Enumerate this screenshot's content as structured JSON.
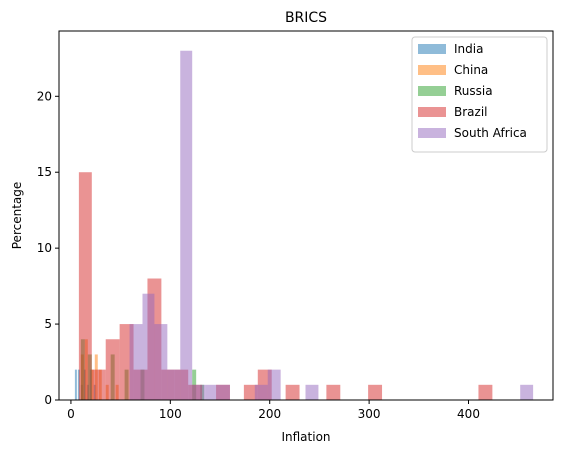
{
  "chart_data": {
    "type": "bar",
    "title": "BRICS",
    "xlabel": "Inflation",
    "ylabel": "Percentage",
    "xlim": [
      -12,
      485
    ],
    "ylim": [
      0,
      24.3
    ],
    "xticks": [
      0,
      100,
      200,
      300,
      400
    ],
    "yticks": [
      0,
      5,
      10,
      15,
      20
    ],
    "grid": false,
    "legend_position": "top-right",
    "series": [
      {
        "name": "India",
        "color": "#1f77b4",
        "bins": [
          {
            "x0": 4,
            "x1": 6,
            "value": 2
          },
          {
            "x0": 7,
            "x1": 9,
            "value": 2
          },
          {
            "x0": 10,
            "x1": 12,
            "value": 1
          },
          {
            "x0": 13,
            "x1": 15,
            "value": 2
          },
          {
            "x0": 16,
            "x1": 18,
            "value": 1
          },
          {
            "x0": 19,
            "x1": 21,
            "value": 2
          },
          {
            "x0": 23,
            "x1": 25,
            "value": 1
          }
        ]
      },
      {
        "name": "China",
        "color": "#ff7f0e",
        "bins": [
          {
            "x0": 10,
            "x1": 13,
            "value": 3
          },
          {
            "x0": 14,
            "x1": 17,
            "value": 4
          },
          {
            "x0": 20,
            "x1": 23,
            "value": 2
          },
          {
            "x0": 24,
            "x1": 27,
            "value": 3
          },
          {
            "x0": 28,
            "x1": 31,
            "value": 2
          },
          {
            "x0": 35,
            "x1": 38,
            "value": 1
          },
          {
            "x0": 45,
            "x1": 48,
            "value": 1
          }
        ]
      },
      {
        "name": "Russia",
        "color": "#2ca02c",
        "bins": [
          {
            "x0": 10,
            "x1": 14,
            "value": 4
          },
          {
            "x0": 17,
            "x1": 21,
            "value": 3
          },
          {
            "x0": 40,
            "x1": 44,
            "value": 3
          },
          {
            "x0": 54,
            "x1": 58,
            "value": 2
          },
          {
            "x0": 70,
            "x1": 74,
            "value": 2
          },
          {
            "x0": 122,
            "x1": 126,
            "value": 2
          },
          {
            "x0": 130,
            "x1": 134,
            "value": 1
          }
        ]
      },
      {
        "name": "Brazil",
        "color": "#d62728",
        "bins": [
          {
            "x0": 8,
            "x1": 21,
            "value": 15
          },
          {
            "x0": 21,
            "x1": 35,
            "value": 2
          },
          {
            "x0": 35,
            "x1": 49,
            "value": 4
          },
          {
            "x0": 49,
            "x1": 63,
            "value": 5
          },
          {
            "x0": 63,
            "x1": 77,
            "value": 2
          },
          {
            "x0": 77,
            "x1": 91,
            "value": 8
          },
          {
            "x0": 91,
            "x1": 104,
            "value": 2
          },
          {
            "x0": 104,
            "x1": 118,
            "value": 2
          },
          {
            "x0": 118,
            "x1": 132,
            "value": 1
          },
          {
            "x0": 146,
            "x1": 160,
            "value": 1
          },
          {
            "x0": 174,
            "x1": 188,
            "value": 1
          },
          {
            "x0": 188,
            "x1": 202,
            "value": 2
          },
          {
            "x0": 216,
            "x1": 230,
            "value": 1
          },
          {
            "x0": 257,
            "x1": 271,
            "value": 1
          },
          {
            "x0": 299,
            "x1": 313,
            "value": 1
          },
          {
            "x0": 410,
            "x1": 424,
            "value": 1
          }
        ]
      },
      {
        "name": "South Africa",
        "color": "#9467bd",
        "bins": [
          {
            "x0": 59,
            "x1": 72,
            "value": 5
          },
          {
            "x0": 72,
            "x1": 84,
            "value": 7
          },
          {
            "x0": 84,
            "x1": 97,
            "value": 5
          },
          {
            "x0": 97,
            "x1": 110,
            "value": 2
          },
          {
            "x0": 110,
            "x1": 122,
            "value": 23
          },
          {
            "x0": 122,
            "x1": 135,
            "value": 1
          },
          {
            "x0": 135,
            "x1": 147,
            "value": 1
          },
          {
            "x0": 147,
            "x1": 160,
            "value": 1
          },
          {
            "x0": 185,
            "x1": 198,
            "value": 1
          },
          {
            "x0": 198,
            "x1": 211,
            "value": 2
          },
          {
            "x0": 236,
            "x1": 249,
            "value": 1
          },
          {
            "x0": 452,
            "x1": 465,
            "value": 1
          }
        ]
      }
    ]
  }
}
